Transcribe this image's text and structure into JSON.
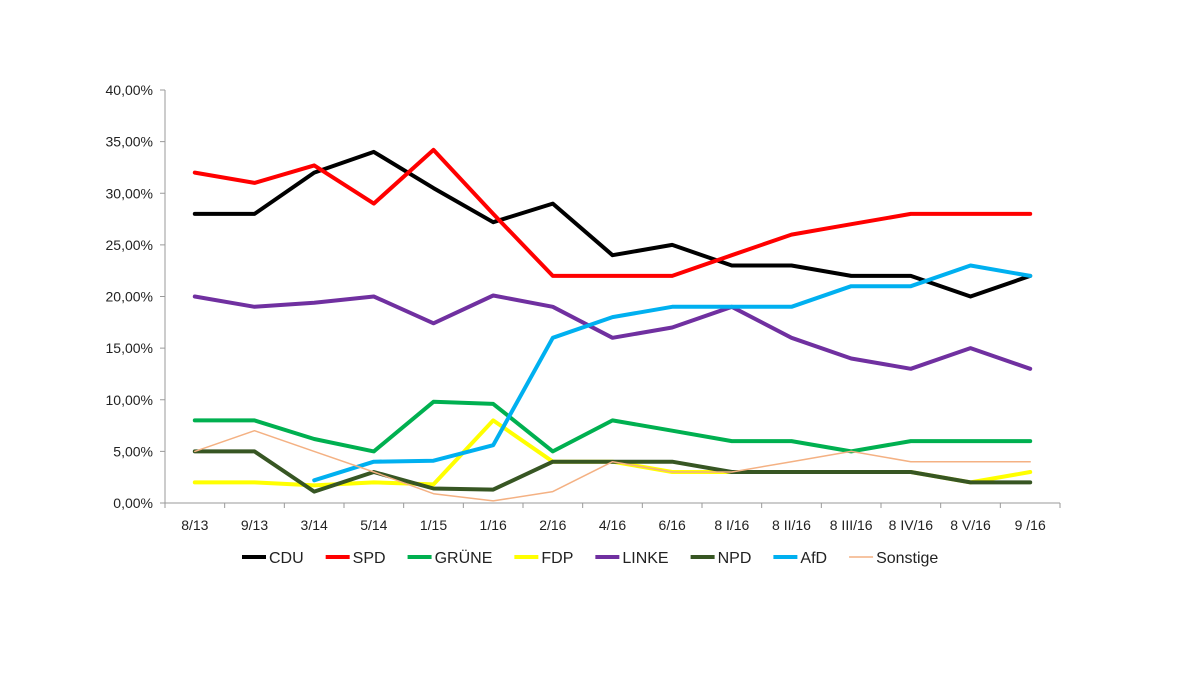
{
  "chart_data": {
    "type": "line",
    "title": "",
    "xlabel": "",
    "ylabel": "",
    "ylim": [
      0,
      40
    ],
    "y_ticks": [
      0,
      5,
      10,
      15,
      20,
      25,
      30,
      35,
      40
    ],
    "y_tick_labels": [
      "0,00%",
      "5,00%",
      "10,00%",
      "15,00%",
      "20,00%",
      "25,00%",
      "30,00%",
      "35,00%",
      "40,00%"
    ],
    "categories": [
      "8/13",
      "9/13",
      "3/14",
      "5/14",
      "1/15",
      "1/16",
      "2/16",
      "4/16",
      "6/16",
      "8 I/16",
      "8 II/16",
      "8 III/16",
      "8 IV/16",
      "8 V/16",
      "9 /16"
    ],
    "grid": false,
    "legend_position": "bottom",
    "series": [
      {
        "name": "CDU",
        "color": "#000000",
        "width": 4,
        "values": [
          28,
          28,
          32,
          34,
          30.5,
          27.2,
          29,
          24,
          25,
          23,
          23,
          22,
          22,
          20,
          22
        ]
      },
      {
        "name": "SPD",
        "color": "#ff0000",
        "width": 4,
        "values": [
          32,
          31,
          32.7,
          29,
          34.2,
          28,
          22,
          22,
          22,
          24,
          26,
          27,
          28,
          28,
          28
        ]
      },
      {
        "name": "GRÜNE",
        "color": "#00b050",
        "width": 4,
        "values": [
          8,
          8,
          6.2,
          5,
          9.8,
          9.6,
          5,
          8,
          7,
          6,
          6,
          5,
          6,
          6,
          6
        ]
      },
      {
        "name": "FDP",
        "color": "#ffff00",
        "width": 4,
        "values": [
          2,
          2,
          1.7,
          2,
          1.8,
          8,
          4,
          4,
          3,
          3,
          3,
          3,
          3,
          2,
          3
        ]
      },
      {
        "name": "LINKE",
        "color": "#7030a0",
        "width": 4,
        "values": [
          20,
          19,
          19.4,
          20,
          17.4,
          20.1,
          19,
          16,
          17,
          19,
          16,
          14,
          13,
          15,
          13
        ]
      },
      {
        "name": "NPD",
        "color": "#375623",
        "width": 4,
        "values": [
          5,
          5,
          1.1,
          3,
          1.4,
          1.3,
          4,
          4,
          4,
          3,
          3,
          3,
          3,
          2,
          2
        ]
      },
      {
        "name": "AfD",
        "color": "#00b0f0",
        "width": 4,
        "values": [
          null,
          null,
          2.2,
          4,
          4.1,
          5.6,
          16,
          18,
          19,
          19,
          19,
          21,
          21,
          23,
          22
        ]
      },
      {
        "name": "Sonstige",
        "color": "#f4b183",
        "width": 1.5,
        "values": [
          5,
          7,
          5,
          3,
          0.9,
          0.2,
          1.1,
          4,
          3,
          3,
          4,
          5,
          4,
          4,
          4
        ]
      }
    ]
  }
}
